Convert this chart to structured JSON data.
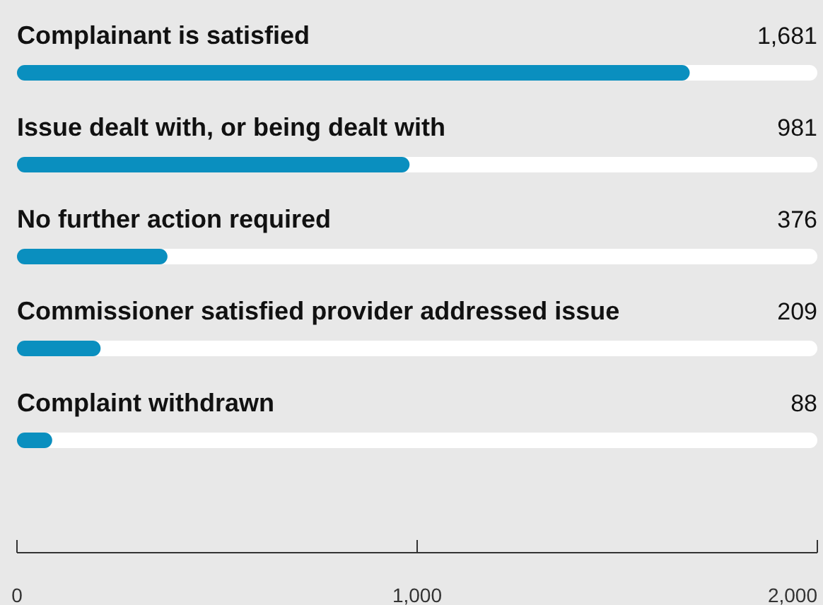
{
  "chart_data": {
    "type": "bar",
    "orientation": "horizontal",
    "categories": [
      "Complainant is satisfied",
      "Issue dealt with, or being dealt with",
      "No further action required",
      "Commissioner satisfied provider addressed issue",
      "Complaint withdrawn"
    ],
    "values": [
      1681,
      981,
      376,
      209,
      88
    ],
    "value_labels": [
      "1,681",
      "981",
      "376",
      "209",
      "88"
    ],
    "color": "#0a8fbf",
    "xlim": [
      0,
      2000
    ],
    "xticks": [
      0,
      {
        "value": 1000,
        "label": "1,000"
      },
      {
        "value": 2000,
        "label": "2,000"
      }
    ],
    "grid": false
  }
}
